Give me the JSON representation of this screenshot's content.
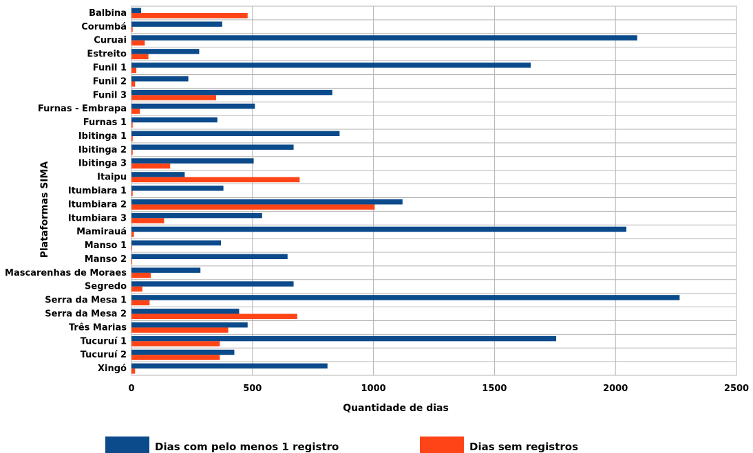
{
  "chart_data": {
    "type": "bar",
    "orientation": "horizontal",
    "xlabel": "Quantidade de dias",
    "ylabel": "Plataformas SIMA",
    "xlim": [
      0,
      2500
    ],
    "xticks": [
      0,
      500,
      1000,
      1500,
      2000,
      2500
    ],
    "grid": true,
    "legend_position": "bottom",
    "categories": [
      "Balbina",
      "Corumbá",
      "Curuai",
      "Estreito",
      "Funil 1",
      "Funil 2",
      "Funil 3",
      "Furnas - Embrapa",
      "Furnas 1",
      "Ibitinga 1",
      "Ibitinga 2",
      "Ibitinga 3",
      "Itaipu",
      "Itumbiara 1",
      "Itumbiara 2",
      "Itumbiara 3",
      "Mamirauá",
      "Manso 1",
      "Manso 2",
      "Mascarenhas de Moraes",
      "Segredo",
      "Serra da Mesa 1",
      "Serra da Mesa 2",
      "Três Marias",
      "Tucuruí 1",
      "Tucuruí 2",
      "Xingó"
    ],
    "series": [
      {
        "name": "Dias com pelo menos 1 registro",
        "color": "#0b4a8b",
        "values": [
          40,
          375,
          2090,
          280,
          1650,
          235,
          830,
          510,
          355,
          860,
          670,
          505,
          220,
          380,
          1120,
          540,
          2045,
          370,
          645,
          285,
          670,
          2265,
          445,
          480,
          1755,
          425,
          810
        ]
      },
      {
        "name": "Dias sem registros",
        "color": "#ff4517",
        "values": [
          480,
          5,
          55,
          70,
          20,
          15,
          350,
          35,
          5,
          5,
          5,
          160,
          695,
          5,
          1005,
          135,
          10,
          3,
          3,
          80,
          45,
          75,
          685,
          400,
          365,
          365,
          15
        ]
      }
    ]
  }
}
